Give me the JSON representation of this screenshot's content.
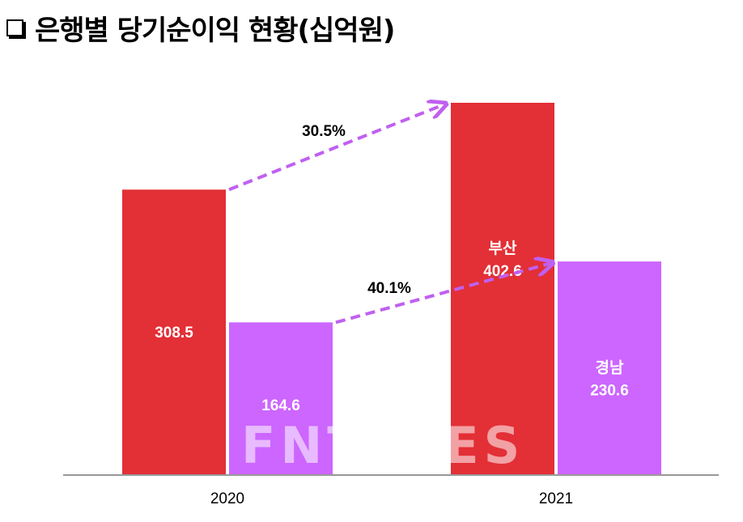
{
  "title": "은행별 당기순이익 현황(십억원)",
  "title_icon": "checkbox-square-icon",
  "watermark": "FNTIMES",
  "chart_data": {
    "type": "bar",
    "title": "은행별 당기순이익 현황(십억원)",
    "categories": [
      "2020",
      "2021"
    ],
    "series": [
      {
        "name": "부산",
        "values": [
          308.5,
          402.6
        ],
        "color": "#e32f36"
      },
      {
        "name": "경남",
        "values": [
          164.6,
          230.6
        ],
        "color": "#cc66ff"
      }
    ],
    "data_labels": [
      [
        "308.5",
        "부산\n402.6"
      ],
      [
        "164.6",
        "경남\n230.6"
      ]
    ],
    "annotations": [
      {
        "text": "30.5%",
        "series": "부산",
        "from": "2020",
        "to": "2021"
      },
      {
        "text": "40.1%",
        "series": "경남",
        "from": "2020",
        "to": "2021"
      }
    ],
    "arrow_color": "#c060f0",
    "ylim": [
      0,
      402.6
    ],
    "grid": false,
    "legend": "none"
  }
}
